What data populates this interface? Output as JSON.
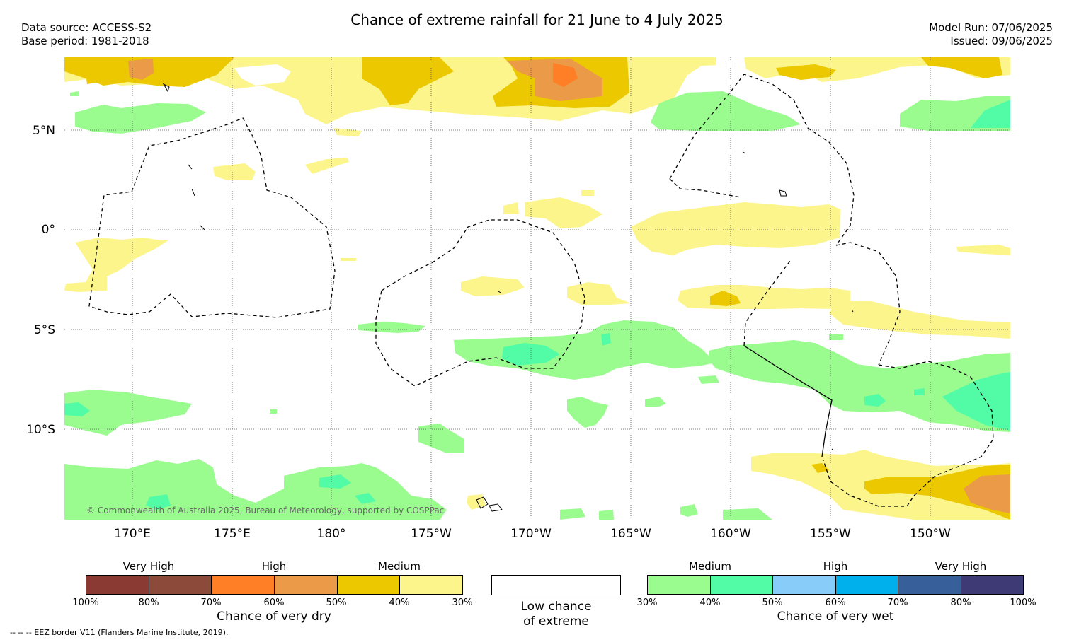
{
  "title": "Chance of extreme rainfall for 21 June to 4 July 2025",
  "info_left": {
    "source": "Data source: ACCESS-S2",
    "base": "Base period: 1981-2018"
  },
  "info_right": {
    "model_run": "Model Run: 07/06/2025",
    "issued": "Issued: 09/06/2025"
  },
  "lat_labels": [
    "5°N",
    "0°",
    "5°S",
    "10°S"
  ],
  "lon_labels": [
    "170°E",
    "175°E",
    "180°",
    "175°W",
    "170°W",
    "165°W",
    "160°W",
    "155°W",
    "150°W"
  ],
  "copyright": "© Commonwealth of Australia 2025, Bureau of Meteorology, supported by COSPPac",
  "legend_dry": {
    "categories": [
      "Very High",
      "High",
      "Medium"
    ],
    "ticks": [
      "100%",
      "80%",
      "70%",
      "60%",
      "50%",
      "40%",
      "30%"
    ],
    "colors": [
      "#8b3a33",
      "#8b4a3a",
      "#ff7f27",
      "#eb9a47",
      "#ecc800",
      "#fcf58c"
    ],
    "title": "Chance of very dry"
  },
  "legend_low": {
    "line1": "Low chance",
    "line2": "of extreme"
  },
  "legend_wet": {
    "categories": [
      "Medium",
      "High",
      "Very High"
    ],
    "ticks": [
      "30%",
      "40%",
      "50%",
      "60%",
      "70%",
      "80%",
      "100%"
    ],
    "colors": [
      "#9afb8f",
      "#52fca6",
      "#88ccfa",
      "#00b0ec",
      "#37609b",
      "#3e3a75"
    ],
    "title": "Chance of very wet"
  },
  "footnote": "--  --  -- EEZ border V11 (Flanders Marine Institute, 2019).",
  "map_colors": {
    "yellow": "#fcf58c",
    "gold": "#ecc800",
    "lightorange": "#eb9a47",
    "orange": "#ff7f27",
    "green": "#9afb8f",
    "teal": "#52fca6"
  }
}
